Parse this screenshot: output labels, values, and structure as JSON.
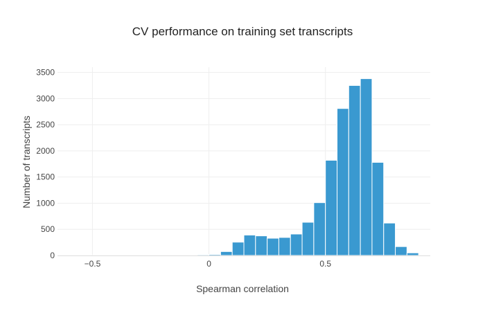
{
  "chart_data": {
    "type": "bar",
    "title": "CV performance on training set transcripts",
    "xlabel": "Spearman correlation",
    "ylabel": "Number of transcripts",
    "xlim": [
      -0.65,
      0.95
    ],
    "ylim": [
      0,
      3600
    ],
    "x_ticks": [
      {
        "value": -0.5,
        "label": "−0.5"
      },
      {
        "value": 0,
        "label": "0"
      },
      {
        "value": 0.5,
        "label": "0.5"
      }
    ],
    "y_ticks": [
      {
        "value": 0,
        "label": "0"
      },
      {
        "value": 500,
        "label": "500"
      },
      {
        "value": 1000,
        "label": "1000"
      },
      {
        "value": 1500,
        "label": "1500"
      },
      {
        "value": 2000,
        "label": "2000"
      },
      {
        "value": 2500,
        "label": "2500"
      },
      {
        "value": 3000,
        "label": "3000"
      },
      {
        "value": 3500,
        "label": "3500"
      }
    ],
    "bin_width": 0.05,
    "bins": [
      {
        "x0": -0.5,
        "value": 3
      },
      {
        "x0": -0.45,
        "value": 2
      },
      {
        "x0": -0.4,
        "value": 2
      },
      {
        "x0": -0.35,
        "value": 4
      },
      {
        "x0": -0.3,
        "value": 5
      },
      {
        "x0": -0.25,
        "value": 6
      },
      {
        "x0": -0.2,
        "value": 8
      },
      {
        "x0": -0.15,
        "value": 10
      },
      {
        "x0": -0.1,
        "value": 12
      },
      {
        "x0": -0.05,
        "value": 15
      },
      {
        "x0": 0.0,
        "value": 20
      },
      {
        "x0": 0.05,
        "value": 75
      },
      {
        "x0": 0.1,
        "value": 255
      },
      {
        "x0": 0.15,
        "value": 390
      },
      {
        "x0": 0.2,
        "value": 375
      },
      {
        "x0": 0.25,
        "value": 330
      },
      {
        "x0": 0.3,
        "value": 345
      },
      {
        "x0": 0.35,
        "value": 410
      },
      {
        "x0": 0.4,
        "value": 635
      },
      {
        "x0": 0.45,
        "value": 1010
      },
      {
        "x0": 0.5,
        "value": 1820
      },
      {
        "x0": 0.55,
        "value": 2810
      },
      {
        "x0": 0.6,
        "value": 3250
      },
      {
        "x0": 0.65,
        "value": 3380
      },
      {
        "x0": 0.7,
        "value": 1780
      },
      {
        "x0": 0.75,
        "value": 620
      },
      {
        "x0": 0.8,
        "value": 170
      },
      {
        "x0": 0.85,
        "value": 50
      }
    ],
    "grid": true,
    "legend": "none",
    "colors": {
      "bar": "#3a99d0",
      "bar_edge": "#ffffff",
      "grid": "#eeeeee",
      "axis_line": "#dddddd",
      "tick_text": "#444444",
      "label_text": "#444444",
      "title_text": "#222222"
    }
  }
}
